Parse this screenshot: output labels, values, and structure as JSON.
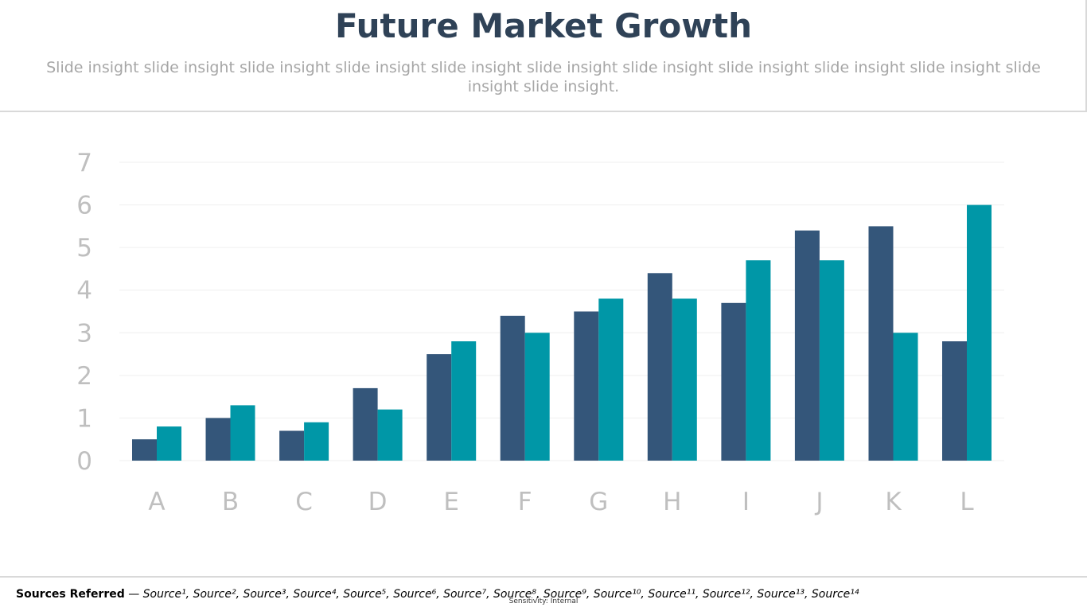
{
  "slide": {
    "title": "Future Market Growth",
    "subtitle": "Slide insight slide insight slide insight slide insight slide insight slide insight slide insight slide insight slide insight slide insight slide insight slide insight.",
    "sources_lead": "Sources Referred",
    "sources_dash": " — ",
    "sources_list": "Source¹, Source², Source³, Source⁴, Source⁵, Source⁶, Source⁷, Source⁸, Source⁹, Source¹⁰, Source¹¹, Source¹², Source¹³, Source¹⁴",
    "sensitivity": "Sensitivity: Internal"
  },
  "colors": {
    "series1": "#34567a",
    "series2": "#0097a7",
    "grid": "#efefef",
    "tick": "#bfbfbf",
    "title": "#2f4257"
  },
  "chart_data": {
    "type": "bar",
    "title": "",
    "xlabel": "",
    "ylabel": "",
    "categories": [
      "A",
      "B",
      "C",
      "D",
      "E",
      "F",
      "G",
      "H",
      "I",
      "J",
      "K",
      "L"
    ],
    "series": [
      {
        "values": [
          0.5,
          1.0,
          0.7,
          1.7,
          2.5,
          3.4,
          3.5,
          4.4,
          3.7,
          5.4,
          5.5,
          2.8
        ]
      },
      {
        "values": [
          0.8,
          1.3,
          0.9,
          1.2,
          2.8,
          3.0,
          3.8,
          3.8,
          4.7,
          4.7,
          3.0,
          6.0
        ]
      }
    ],
    "ylim": [
      0,
      7
    ],
    "yticks": [
      0,
      1,
      2,
      3,
      4,
      5,
      6,
      7
    ],
    "grid": true,
    "legend": "none"
  }
}
